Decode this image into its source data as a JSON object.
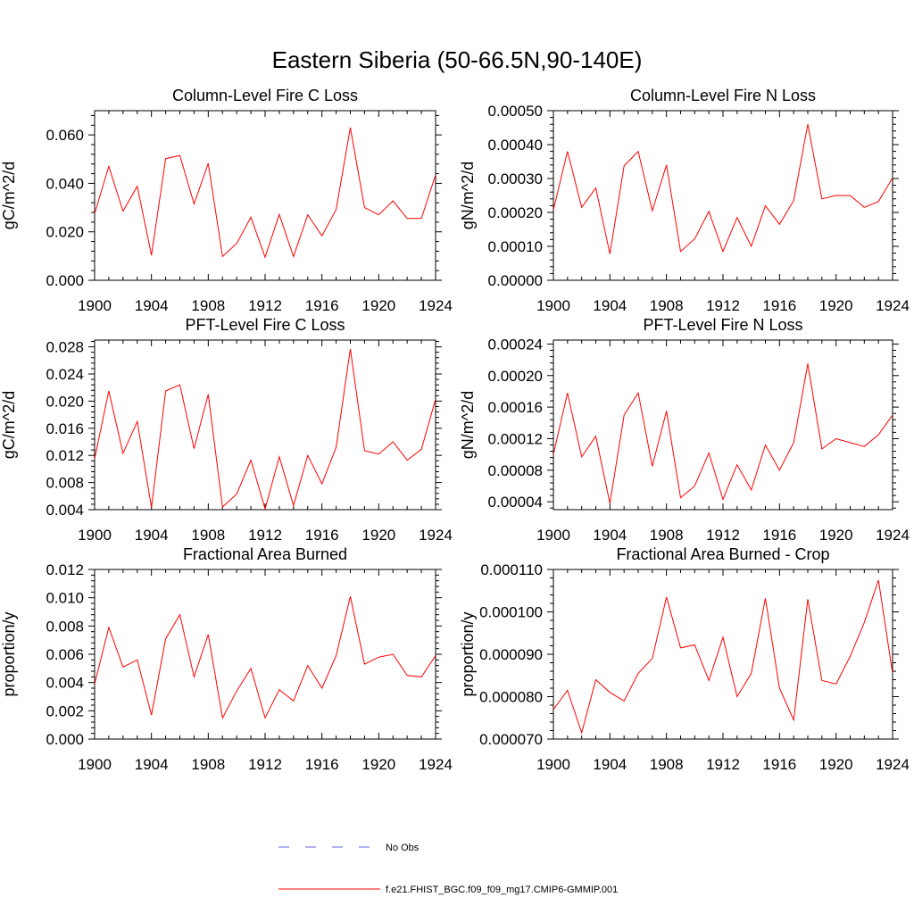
{
  "figure_title": "Eastern Siberia (50-66.5N,90-140E)",
  "colors": {
    "model": "#ff0000",
    "obs": "#6a6ae0",
    "axis": "#000000"
  },
  "legend": [
    {
      "label": "No Obs",
      "style": "dashed",
      "color": "#6a6ae0"
    },
    {
      "label": "f.e21.FHIST_BGC.f09_f09_mg17.CMIP6-GMMIP.001",
      "style": "solid",
      "color": "#ff0000"
    }
  ],
  "chart_data": [
    {
      "type": "line",
      "title": "Column-Level Fire C Loss",
      "ylabel": "gC/m^2/d",
      "xlim": [
        1900,
        1924
      ],
      "ylim": [
        0.0,
        0.07
      ],
      "xticks": [
        1900,
        1904,
        1908,
        1912,
        1916,
        1920,
        1924
      ],
      "yticks": [
        0.0,
        0.02,
        0.04,
        0.06
      ],
      "ytick_labels": [
        "0.000",
        "0.020",
        "0.040",
        "0.060"
      ],
      "x": [
        1900,
        1901,
        1902,
        1903,
        1904,
        1905,
        1906,
        1907,
        1908,
        1909,
        1910,
        1911,
        1912,
        1913,
        1914,
        1915,
        1916,
        1917,
        1918,
        1919,
        1920,
        1921,
        1922,
        1923,
        1924
      ],
      "series": [
        {
          "name": "f.e21.FHIST_BGC.f09_f09_mg17.CMIP6-GMMIP.001",
          "values": [
            0.0275,
            0.047,
            0.0285,
            0.0388,
            0.0103,
            0.0502,
            0.0515,
            0.0315,
            0.0483,
            0.0098,
            0.0152,
            0.026,
            0.0095,
            0.0272,
            0.0098,
            0.027,
            0.0183,
            0.0292,
            0.063,
            0.03,
            0.027,
            0.0328,
            0.0255,
            0.0255,
            0.0435
          ]
        }
      ]
    },
    {
      "type": "line",
      "title": "Column-Level Fire N Loss",
      "ylabel": "gN/m^2/d",
      "xlim": [
        1900,
        1924
      ],
      "ylim": [
        0.0,
        0.0005
      ],
      "xticks": [
        1900,
        1904,
        1908,
        1912,
        1916,
        1920,
        1924
      ],
      "yticks": [
        0.0,
        0.0001,
        0.0002,
        0.0003,
        0.0004,
        0.0005
      ],
      "ytick_labels": [
        "0.00000",
        "0.00010",
        "0.00020",
        "0.00030",
        "0.00040",
        "0.00050"
      ],
      "x": [
        1900,
        1901,
        1902,
        1903,
        1904,
        1905,
        1906,
        1907,
        1908,
        1909,
        1910,
        1911,
        1912,
        1913,
        1914,
        1915,
        1916,
        1917,
        1918,
        1919,
        1920,
        1921,
        1922,
        1923,
        1924
      ],
      "series": [
        {
          "name": "f.e21.FHIST_BGC.f09_f09_mg17.CMIP6-GMMIP.001",
          "values": [
            0.000208,
            0.00038,
            0.000215,
            0.000272,
            7.8e-05,
            0.000337,
            0.00038,
            0.000205,
            0.00034,
            8.5e-05,
            0.000122,
            0.000203,
            8.5e-05,
            0.000185,
            0.0001,
            0.00022,
            0.000165,
            0.000235,
            0.00046,
            0.00024,
            0.00025,
            0.00025,
            0.000215,
            0.000232,
            0.000302
          ]
        }
      ]
    },
    {
      "type": "line",
      "title": "PFT-Level Fire C Loss",
      "ylabel": "gC/m^2/d",
      "xlim": [
        1900,
        1924
      ],
      "ylim": [
        0.004,
        0.029
      ],
      "xticks": [
        1900,
        1904,
        1908,
        1912,
        1916,
        1920,
        1924
      ],
      "yticks": [
        0.004,
        0.008,
        0.012,
        0.016,
        0.02,
        0.024,
        0.028
      ],
      "ytick_labels": [
        "0.004",
        "0.008",
        "0.012",
        "0.016",
        "0.020",
        "0.024",
        "0.028"
      ],
      "x": [
        1900,
        1901,
        1902,
        1903,
        1904,
        1905,
        1906,
        1907,
        1908,
        1909,
        1910,
        1911,
        1912,
        1913,
        1914,
        1915,
        1916,
        1917,
        1918,
        1919,
        1920,
        1921,
        1922,
        1923,
        1924
      ],
      "series": [
        {
          "name": "f.e21.FHIST_BGC.f09_f09_mg17.CMIP6-GMMIP.001",
          "values": [
            0.0115,
            0.0215,
            0.0123,
            0.017,
            0.0043,
            0.0215,
            0.0224,
            0.013,
            0.021,
            0.0044,
            0.0063,
            0.0113,
            0.0041,
            0.0118,
            0.0046,
            0.012,
            0.0078,
            0.0132,
            0.0277,
            0.0127,
            0.0122,
            0.014,
            0.0113,
            0.0129,
            0.0203
          ]
        }
      ]
    },
    {
      "type": "line",
      "title": "PFT-Level Fire N Loss",
      "ylabel": "gN/m^2/d",
      "xlim": [
        1900,
        1924
      ],
      "ylim": [
        3e-05,
        0.000245
      ],
      "xticks": [
        1900,
        1904,
        1908,
        1912,
        1916,
        1920,
        1924
      ],
      "yticks": [
        4e-05,
        8e-05,
        0.00012,
        0.00016,
        0.0002,
        0.00024
      ],
      "ytick_labels": [
        "0.00004",
        "0.00008",
        "0.00012",
        "0.00016",
        "0.00020",
        "0.00024"
      ],
      "x": [
        1900,
        1901,
        1902,
        1903,
        1904,
        1905,
        1906,
        1907,
        1908,
        1909,
        1910,
        1911,
        1912,
        1913,
        1914,
        1915,
        1916,
        1917,
        1918,
        1919,
        1920,
        1921,
        1922,
        1923,
        1924
      ],
      "series": [
        {
          "name": "f.e21.FHIST_BGC.f09_f09_mg17.CMIP6-GMMIP.001",
          "values": [
            0.0001,
            0.000178,
            9.7e-05,
            0.000123,
            3.8e-05,
            0.00015,
            0.000178,
            8.5e-05,
            0.000155,
            4.5e-05,
            6e-05,
            0.000102,
            4.3e-05,
            8.7e-05,
            5.5e-05,
            0.000112,
            8e-05,
            0.000115,
            0.000215,
            0.000107,
            0.00012,
            0.000115,
            0.00011,
            0.000125,
            0.00015
          ]
        }
      ]
    },
    {
      "type": "line",
      "title": "Fractional Area Burned",
      "ylabel": "proportion/y",
      "xlim": [
        1900,
        1924
      ],
      "ylim": [
        0.0,
        0.012
      ],
      "xticks": [
        1900,
        1904,
        1908,
        1912,
        1916,
        1920,
        1924
      ],
      "yticks": [
        0.0,
        0.002,
        0.004,
        0.006,
        0.008,
        0.01,
        0.012
      ],
      "ytick_labels": [
        "0.000",
        "0.002",
        "0.004",
        "0.006",
        "0.008",
        "0.010",
        "0.012"
      ],
      "x": [
        1900,
        1901,
        1902,
        1903,
        1904,
        1905,
        1906,
        1907,
        1908,
        1909,
        1910,
        1911,
        1912,
        1913,
        1914,
        1915,
        1916,
        1917,
        1918,
        1919,
        1920,
        1921,
        1922,
        1923,
        1924
      ],
      "series": [
        {
          "name": "f.e21.FHIST_BGC.f09_f09_mg17.CMIP6-GMMIP.001",
          "values": [
            0.0039,
            0.0079,
            0.0051,
            0.0056,
            0.0017,
            0.0071,
            0.0088,
            0.0044,
            0.0074,
            0.0015,
            0.0034,
            0.005,
            0.0015,
            0.0035,
            0.0027,
            0.0052,
            0.0036,
            0.0059,
            0.0101,
            0.0053,
            0.0058,
            0.006,
            0.0045,
            0.0044,
            0.0059
          ]
        }
      ]
    },
    {
      "type": "line",
      "title": "Fractional Area Burned - Crop",
      "ylabel": "proportion/y",
      "xlim": [
        1900,
        1924
      ],
      "ylim": [
        7e-05,
        0.00011
      ],
      "xticks": [
        1900,
        1904,
        1908,
        1912,
        1916,
        1920,
        1924
      ],
      "yticks": [
        7e-05,
        8e-05,
        9e-05,
        0.0001,
        0.00011
      ],
      "ytick_labels": [
        "0.000070",
        "0.000080",
        "0.000090",
        "0.000100",
        "0.000110"
      ],
      "x": [
        1900,
        1901,
        1902,
        1903,
        1904,
        1905,
        1906,
        1907,
        1908,
        1909,
        1910,
        1911,
        1912,
        1913,
        1914,
        1915,
        1916,
        1917,
        1918,
        1919,
        1920,
        1921,
        1922,
        1923,
        1924
      ],
      "series": [
        {
          "name": "f.e21.FHIST_BGC.f09_f09_mg17.CMIP6-GMMIP.001",
          "values": [
            7.7e-05,
            8.15e-05,
            7.15e-05,
            8.4e-05,
            8.1e-05,
            7.9e-05,
            8.55e-05,
            8.9e-05,
            0.0001035,
            9.15e-05,
            9.22e-05,
            8.38e-05,
            9.4e-05,
            8e-05,
            8.55e-05,
            0.0001032,
            8.2e-05,
            7.45e-05,
            0.000103,
            8.38e-05,
            8.3e-05,
            8.95e-05,
            9.75e-05,
            0.0001075,
            8.55e-05
          ]
        }
      ]
    }
  ]
}
